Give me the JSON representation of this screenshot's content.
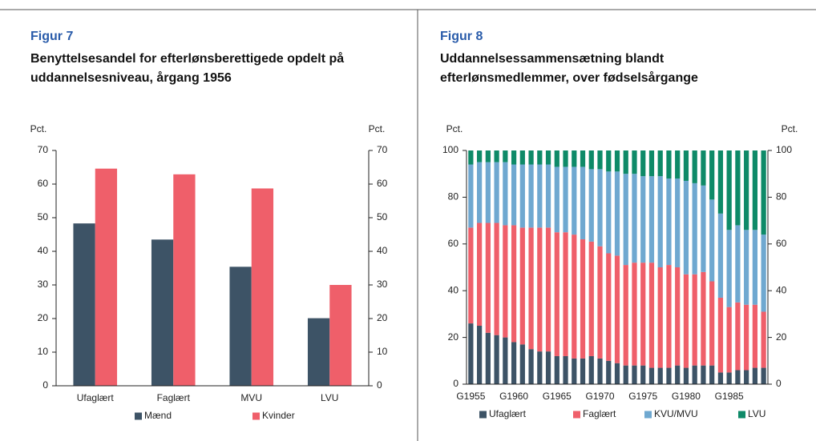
{
  "chart_data": [
    {
      "type": "bar",
      "figure_label": "Figur 7",
      "title": "Benyttelsesandel for efterlønsberettigede opdelt på uddannelsesniveau, årgang 1956",
      "ylabel": "Pct.",
      "y2label": "Pct.",
      "categories": [
        "Ufaglært",
        "Faglært",
        "MVU",
        "LVU"
      ],
      "series": [
        {
          "name": "Mænd",
          "color": "#3d5366",
          "values": [
            48.3,
            43.5,
            35.4,
            20.1
          ]
        },
        {
          "name": "Kvinder",
          "color": "#ef5f6a",
          "values": [
            64.6,
            62.9,
            58.7,
            30.0
          ]
        }
      ],
      "ylim": [
        0,
        70
      ],
      "yticks": [
        0,
        10,
        20,
        30,
        40,
        50,
        60,
        70
      ],
      "y2lim": [
        0,
        70
      ],
      "y2ticks": [
        0,
        10,
        20,
        30,
        40,
        50,
        60,
        70
      ]
    },
    {
      "type": "bar",
      "stacked": true,
      "figure_label": "Figur 8",
      "title": "Uddannelsessammensætning blandt efterlønsmedlemmer, over fødselsårgange",
      "ylabel": "Pct.",
      "y2label": "Pct.",
      "categories": [
        "G1955",
        null,
        null,
        null,
        null,
        "G1960",
        null,
        null,
        null,
        null,
        "G1965",
        null,
        null,
        null,
        null,
        "G1970",
        null,
        null,
        null,
        null,
        "G1975",
        null,
        null,
        null,
        null,
        "G1980",
        null,
        null,
        null,
        null,
        "G1985",
        null,
        null,
        null,
        null
      ],
      "series": [
        {
          "name": "Ufaglært",
          "color": "#3d5366",
          "values": [
            26,
            25,
            22,
            21,
            20,
            18,
            17,
            15,
            14,
            14,
            12,
            12,
            11,
            11,
            12,
            11,
            10,
            9,
            8,
            8,
            8,
            7,
            7,
            7,
            8,
            7,
            8,
            8,
            8,
            5,
            5,
            6,
            6,
            7,
            7
          ]
        },
        {
          "name": "Faglært",
          "color": "#ef5f6a",
          "values": [
            41,
            44,
            47,
            48,
            48,
            50,
            50,
            52,
            53,
            53,
            53,
            53,
            53,
            51,
            49,
            48,
            46,
            46,
            43,
            44,
            44,
            45,
            43,
            44,
            42,
            40,
            39,
            40,
            36,
            32,
            28,
            29,
            28,
            27,
            24
          ]
        },
        {
          "name": "KVU/MVU",
          "color": "#6fa8d0",
          "values": [
            27,
            26,
            26,
            26,
            27,
            26,
            27,
            27,
            27,
            27,
            28,
            28,
            29,
            31,
            31,
            33,
            35,
            36,
            39,
            38,
            37,
            37,
            39,
            37,
            38,
            40,
            39,
            37,
            35,
            36,
            33,
            33,
            32,
            32,
            33
          ]
        },
        {
          "name": "LVU",
          "color": "#0e8a68",
          "values": [
            6,
            5,
            5,
            5,
            5,
            6,
            6,
            6,
            6,
            6,
            7,
            7,
            7,
            7,
            8,
            8,
            9,
            9,
            10,
            10,
            11,
            11,
            11,
            12,
            12,
            13,
            14,
            15,
            21,
            27,
            34,
            32,
            34,
            34,
            36
          ]
        }
      ],
      "ylim": [
        0,
        100
      ],
      "yticks": [
        0,
        20,
        40,
        60,
        80,
        100
      ],
      "y2lim": [
        0,
        100
      ],
      "y2ticks": [
        0,
        20,
        40,
        60,
        80,
        100
      ]
    }
  ]
}
